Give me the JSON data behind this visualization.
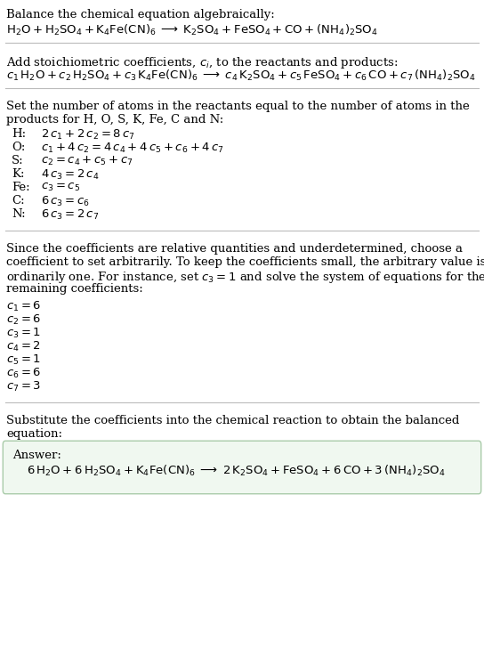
{
  "bg_color": "#ffffff",
  "text_color": "#000000",
  "line_color": "#bbbbbb",
  "box_edge_color": "#aaccaa",
  "box_face_color": "#f0f8f0",
  "font_size": 9.5,
  "sections": {
    "s1_title": "Balance the chemical equation algebraically:",
    "s1_eq": "$\\mathrm{H_2O + H_2SO_4 + K_4Fe(CN)_6 \\;\\longrightarrow\\; K_2SO_4 + FeSO_4 + CO + (NH_4)_2SO_4}$",
    "s2_title": "Add stoichiometric coefficients, $c_i$, to the reactants and products:",
    "s2_eq": "$c_1\\,\\mathrm{H_2O} + c_2\\,\\mathrm{H_2SO_4} + c_3\\,\\mathrm{K_4Fe(CN)_6} \\;\\longrightarrow\\; c_4\\,\\mathrm{K_2SO_4} + c_5\\,\\mathrm{FeSO_4} + c_6\\,\\mathrm{CO} + c_7\\,\\mathrm{(NH_4)_2SO_4}$",
    "s3_title1": "Set the number of atoms in the reactants equal to the number of atoms in the",
    "s3_title2": "products for H, O, S, K, Fe, C and N:",
    "s3_equations": [
      [
        "H:",
        "$2\\,c_1 + 2\\,c_2 = 8\\,c_7$"
      ],
      [
        "O:",
        "$c_1 + 4\\,c_2 = 4\\,c_4 + 4\\,c_5 + c_6 + 4\\,c_7$"
      ],
      [
        "S:",
        "$c_2 = c_4 + c_5 + c_7$"
      ],
      [
        "K:",
        "$4\\,c_3 = 2\\,c_4$"
      ],
      [
        "Fe:",
        "$c_3 = c_5$"
      ],
      [
        "C:",
        "$6\\,c_3 = c_6$"
      ],
      [
        "N:",
        "$6\\,c_3 = 2\\,c_7$"
      ]
    ],
    "s4_text": [
      "Since the coefficients are relative quantities and underdetermined, choose a",
      "coefficient to set arbitrarily. To keep the coefficients small, the arbitrary value is",
      "ordinarily one. For instance, set $c_3 = 1$ and solve the system of equations for the",
      "remaining coefficients:"
    ],
    "s4_coeffs": [
      "$c_1 = 6$",
      "$c_2 = 6$",
      "$c_3 = 1$",
      "$c_4 = 2$",
      "$c_5 = 1$",
      "$c_6 = 6$",
      "$c_7 = 3$"
    ],
    "s5_text1": "Substitute the coefficients into the chemical reaction to obtain the balanced",
    "s5_text2": "equation:",
    "answer_label": "Answer:",
    "answer_eq": "$6\\,\\mathrm{H_2O} + 6\\,\\mathrm{H_2SO_4} + \\mathrm{K_4Fe(CN)_6} \\;\\longrightarrow\\; 2\\,\\mathrm{K_2SO_4} + \\mathrm{FeSO_4} + 6\\,\\mathrm{CO} + 3\\,\\mathrm{(NH_4)_2SO_4}$"
  }
}
